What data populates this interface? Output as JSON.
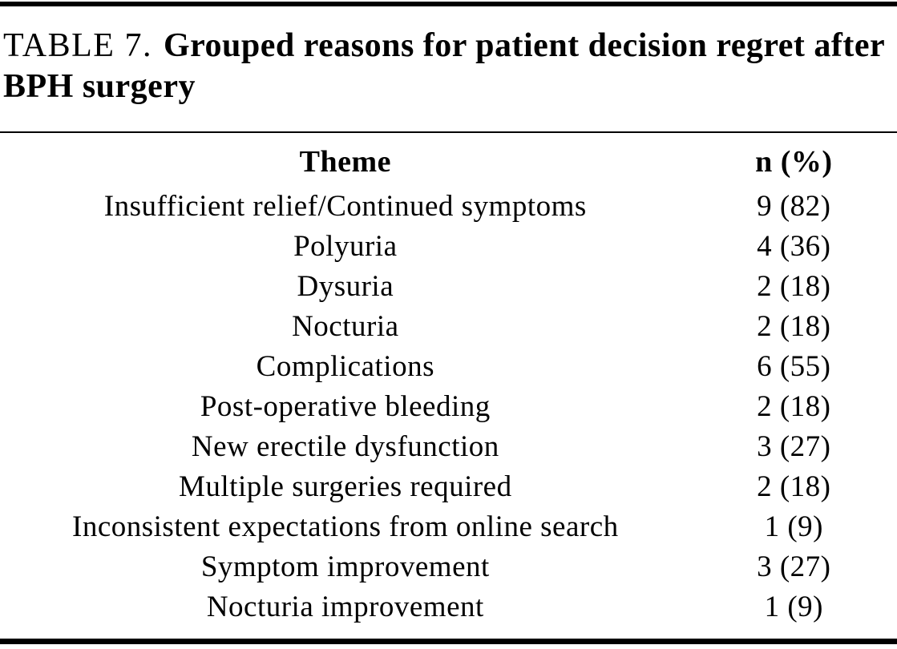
{
  "caption": {
    "label": "TABLE 7.",
    "title_line1": "Grouped reasons for patient decision regret after",
    "title_line2": "BPH surgery",
    "full_title": "Grouped reasons for patient decision regret after BPH surgery"
  },
  "table": {
    "columns": [
      "Theme",
      "n (%)"
    ],
    "rows": [
      {
        "theme": "Insufficient relief/Continued symptoms",
        "n": "9 (82)"
      },
      {
        "theme": "Polyuria",
        "n": "4 (36)"
      },
      {
        "theme": "Dysuria",
        "n": "2 (18)"
      },
      {
        "theme": "Nocturia",
        "n": "2 (18)"
      },
      {
        "theme": "Complications",
        "n": "6 (55)"
      },
      {
        "theme": "Post-operative bleeding",
        "n": "2 (18)"
      },
      {
        "theme": "New erectile dysfunction",
        "n": "3 (27)"
      },
      {
        "theme": "Multiple surgeries required",
        "n": "2 (18)"
      },
      {
        "theme": "Inconsistent expectations from online search",
        "n": "1 (9)"
      },
      {
        "theme": "Symptom improvement",
        "n": "3 (27)"
      },
      {
        "theme": "Nocturia improvement",
        "n": "1 (9)"
      }
    ]
  },
  "colors": {
    "text": "#000000",
    "background": "#ffffff",
    "rule": "#000000"
  }
}
